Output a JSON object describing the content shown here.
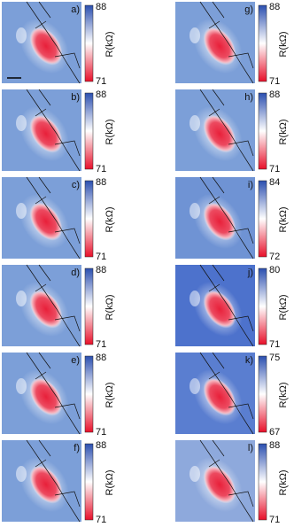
{
  "panels": [
    {
      "label": "a)",
      "max": 88,
      "min": 71,
      "axis_label": "R(kΩ)"
    },
    {
      "label": "b)",
      "max": 88,
      "min": 71,
      "axis_label": "R(kΩ)"
    },
    {
      "label": "c)",
      "max": 88,
      "min": 71,
      "axis_label": "R(kΩ)"
    },
    {
      "label": "d)",
      "max": 88,
      "min": 71,
      "axis_label": "R(kΩ)"
    },
    {
      "label": "e)",
      "max": 88,
      "min": 71,
      "axis_label": "R(kΩ)"
    },
    {
      "label": "f)",
      "max": 88,
      "min": 71,
      "axis_label": "R(kΩ)"
    },
    {
      "label": "g)",
      "max": 88,
      "min": 71,
      "axis_label": "R(kΩ)"
    },
    {
      "label": "h)",
      "max": 88,
      "min": 71,
      "axis_label": "R(kΩ)"
    },
    {
      "label": "i)",
      "max": 84,
      "min": 72,
      "axis_label": "R(kΩ)"
    },
    {
      "label": "j)",
      "max": 80,
      "min": 71,
      "axis_label": "R(kΩ)"
    },
    {
      "label": "k)",
      "max": 75,
      "min": 67,
      "axis_label": "R(kΩ)"
    },
    {
      "label": "l)",
      "max": 88,
      "min": 71,
      "axis_label": "R(kΩ)"
    }
  ]
}
